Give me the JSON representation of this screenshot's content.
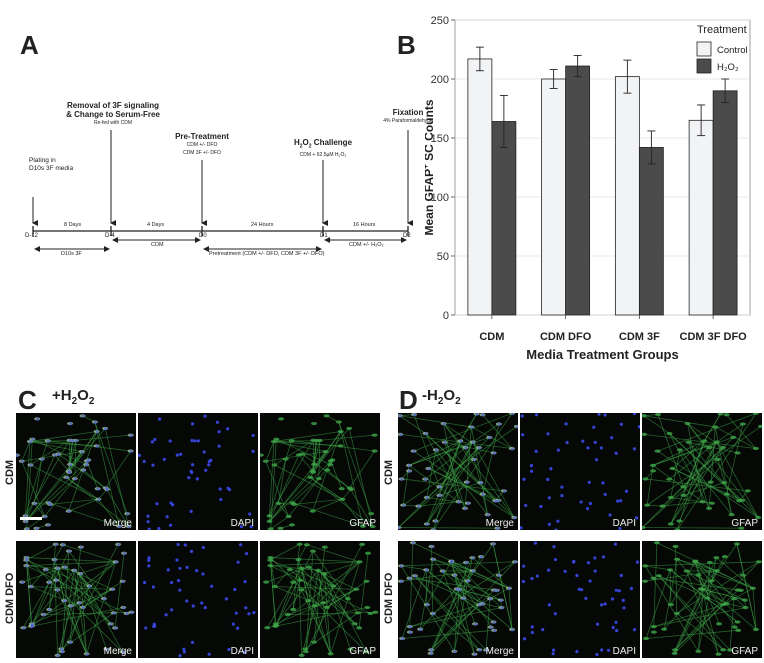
{
  "panels": {
    "A": "A",
    "B": "B",
    "C": "C",
    "D": "D"
  },
  "timeline": {
    "events": {
      "plating": {
        "line1": "Plating in",
        "line2": "D10s 3F media"
      },
      "removal": {
        "line1": "Removal of 3F signaling",
        "line2": "& Change to Serum-Free",
        "sub": "Re-fed with CDM"
      },
      "pretreat": {
        "title": "Pre-Treatment",
        "sub1": "CDM +/- DFO",
        "sub2": "CDM 3F +/- DFO"
      },
      "challenge": {
        "title_pre": "H",
        "title_sub": "2",
        "title_post": "O",
        "title_sub2": "2",
        "title_end": " Challenge",
        "sub": "CDM + 62.5µM H₂O₂"
      },
      "fixation": {
        "title": "Fixation",
        "sub": "4% Paraformaldehyde"
      }
    },
    "days": {
      "d_12": "D-12",
      "d_4": "D-4",
      "d0": "D0",
      "d1": "D1",
      "d2": "D2"
    },
    "intervals": {
      "i1": "8 Days",
      "i2": "4 Days",
      "i3": "24 Hours",
      "i4": "16 Hours"
    },
    "media": {
      "m1": "D10s 3F",
      "m2": "CDM",
      "m3": "Pretreatment (CDM +/- DFO, CDM 3F +/- DFO)",
      "m4": "CDM +/- H₂O₂"
    }
  },
  "chart_data": {
    "type": "bar",
    "categories": [
      "CDM",
      "CDM DFO",
      "CDM 3F",
      "CDM 3F DFO"
    ],
    "series": [
      {
        "name": "Control",
        "values": [
          217,
          200,
          202,
          165
        ],
        "errors": [
          10,
          8,
          14,
          13
        ],
        "color": "#f2f3f5"
      },
      {
        "name": "H₂O₂",
        "values": [
          164,
          211,
          142,
          190
        ],
        "errors": [
          22,
          9,
          14,
          10
        ],
        "color": "#4b4b4b"
      }
    ],
    "xlabel": "Media Treatment Groups",
    "ylabel_pre": "Mean GFAP",
    "ylabel_sup": "+",
    "ylabel_post": " SC Counts",
    "yticks": [
      "0",
      "50",
      "100",
      "150",
      "200",
      "250"
    ],
    "ylim": [
      0,
      250
    ],
    "legend_title": "Treatment",
    "legend_position": "top-right",
    "grid": true
  },
  "micrographs": {
    "C_title_pre": "+H",
    "C_title_sub": "2",
    "C_title_mid": "O",
    "C_title_sub2": "2",
    "D_title_pre": "-H",
    "D_title_sub": "2",
    "D_title_mid": "O",
    "D_title_sub2": "2",
    "rows": [
      "CDM",
      "CDM  DFO"
    ],
    "columns": [
      "Merge",
      "DAPI",
      "GFAP"
    ],
    "colors": {
      "green": "#3fa84a",
      "blue": "#3848e0",
      "background": "#050805"
    }
  }
}
